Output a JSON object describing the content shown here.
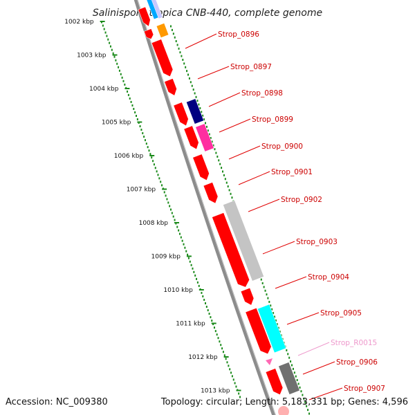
{
  "header": {
    "title": "Salinispora tropica CNB-440, complete genome"
  },
  "footer": {
    "accession": "Accession: NC_009380",
    "topology": "Topology: circular; Length: 5,183,331 bp; Genes: 4,596"
  },
  "scale": {
    "labels": [
      "1002 kbp",
      "1003 kbp",
      "1004 kbp",
      "1005 kbp",
      "1006 kbp",
      "1007 kbp",
      "1008 kbp",
      "1009 kbp",
      "1010 kbp",
      "1011 kbp",
      "1012 kbp",
      "1013 kbp"
    ]
  },
  "colors": {
    "backbone": "#8c8c8c",
    "tick": "#1a8a1a",
    "gene": "#ff0000",
    "label_line": "#e00000",
    "label_text": "#cc0000",
    "rna": "#ff69b4",
    "rna_label": "#ee99cc"
  },
  "labels": [
    {
      "text": "Strop_0896",
      "color": "#cc0000"
    },
    {
      "text": "Strop_0897",
      "color": "#cc0000"
    },
    {
      "text": "Strop_0898",
      "color": "#cc0000"
    },
    {
      "text": "Strop_0899",
      "color": "#cc0000"
    },
    {
      "text": "Strop_0900",
      "color": "#cc0000"
    },
    {
      "text": "Strop_0901",
      "color": "#cc0000"
    },
    {
      "text": "Strop_0902",
      "color": "#cc0000"
    },
    {
      "text": "Strop_0903",
      "color": "#cc0000"
    },
    {
      "text": "Strop_0904",
      "color": "#cc0000"
    },
    {
      "text": "Strop_0905",
      "color": "#cc0000"
    },
    {
      "text": "Strop_R0015",
      "color": "#ee99cc"
    },
    {
      "text": "Strop_0906",
      "color": "#cc0000"
    },
    {
      "text": "Strop_0907",
      "color": "#cc0000"
    }
  ]
}
